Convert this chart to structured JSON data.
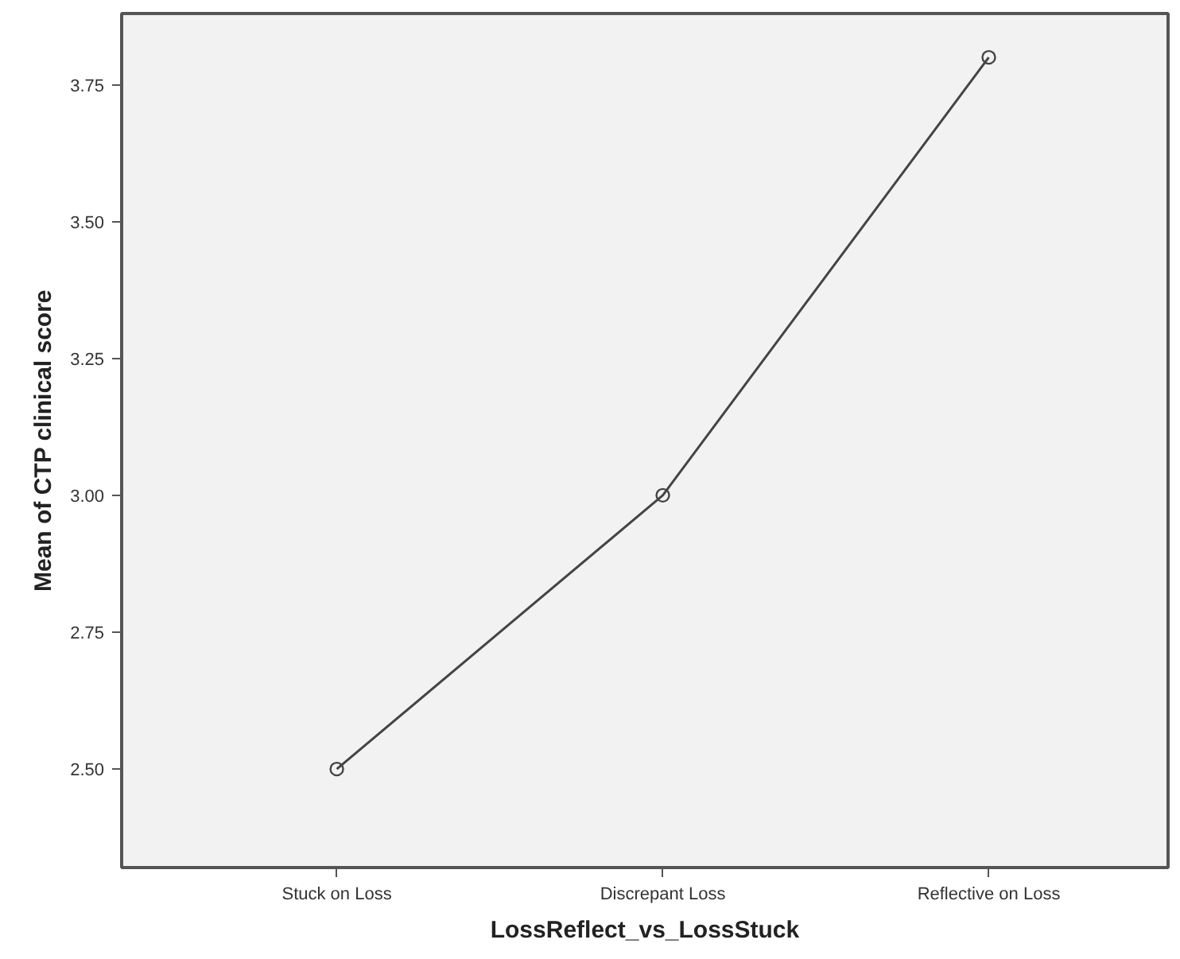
{
  "chart_data": {
    "type": "line",
    "xlabel": "LossReflect_vs_LossStuck",
    "ylabel": "Mean of CTP clinical score",
    "categories": [
      "Stuck on Loss",
      "Discrepant Loss",
      "Reflective on Loss"
    ],
    "series": [
      {
        "color": "#444444",
        "values": [
          2.5,
          3.0,
          3.8
        ]
      }
    ],
    "ylim": [
      2.32,
      3.88
    ],
    "yticks": [
      {
        "value": 2.5,
        "label": "2.50"
      },
      {
        "value": 2.75,
        "label": "2.75"
      },
      {
        "value": 3.0,
        "label": "3.00"
      },
      {
        "value": 3.25,
        "label": "3.25"
      },
      {
        "value": 3.5,
        "label": "3.50"
      },
      {
        "value": 3.75,
        "label": "3.75"
      }
    ],
    "marker": "circle",
    "line_style": "solid",
    "grid": false
  }
}
